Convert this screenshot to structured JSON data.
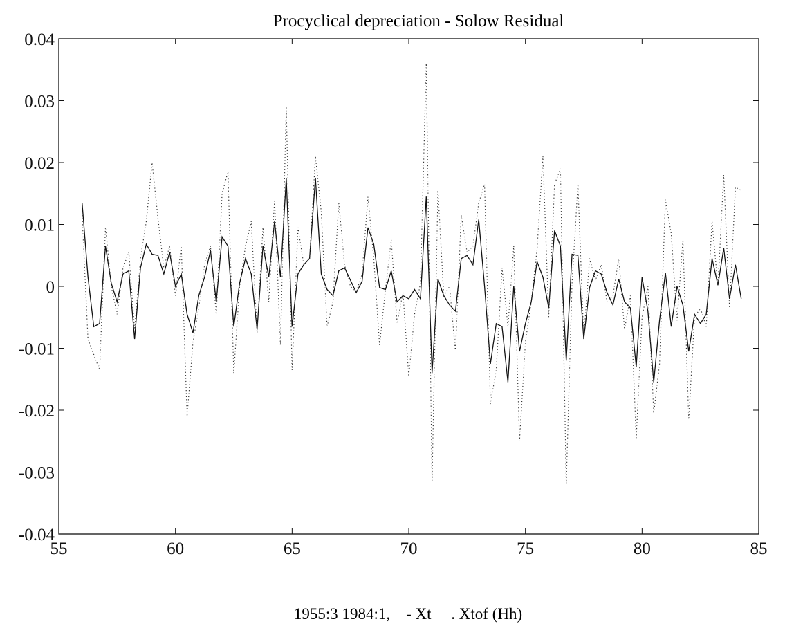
{
  "chart_data": {
    "type": "line",
    "title": "Procyclical depreciation - Solow Residual",
    "xlabel": "1955:3 1984:1,    - Xt     . Xtof (Hh)",
    "ylabel": "",
    "xlim": [
      55,
      85
    ],
    "ylim": [
      -0.04,
      0.04
    ],
    "xticks": [
      "55",
      "60",
      "65",
      "70",
      "75",
      "80",
      "85"
    ],
    "yticks": [
      "0.04",
      "0.03",
      "0.02",
      "0.01",
      "0",
      "-0.01",
      "-0.02",
      "-0.03",
      "-0.04"
    ],
    "grid": false,
    "x_start": 56.0,
    "x_step": 0.25,
    "series": [
      {
        "name": "Xt",
        "style": "solid",
        "values": [
          0.0135,
          0.0015,
          -0.0065,
          -0.006,
          0.0065,
          0.0005,
          -0.0025,
          0.002,
          0.0025,
          -0.0085,
          0.003,
          0.0068,
          0.0052,
          0.005,
          0.002,
          0.0055,
          0.0,
          0.002,
          -0.0045,
          -0.0075,
          -0.0015,
          0.0015,
          0.0058,
          -0.0025,
          0.008,
          0.0065,
          -0.0065,
          0.0005,
          0.0045,
          0.002,
          -0.007,
          0.0065,
          0.0015,
          0.0105,
          0.0015,
          0.0175,
          -0.0065,
          0.002,
          0.0035,
          0.0045,
          0.0175,
          0.002,
          -0.0005,
          -0.0015,
          0.0025,
          0.003,
          0.001,
          -0.001,
          0.0008,
          0.0095,
          0.0068,
          -0.0002,
          -0.0005,
          0.0025,
          -0.0025,
          -0.0015,
          -0.002,
          -0.0005,
          -0.002,
          0.0145,
          -0.014,
          0.0012,
          -0.0015,
          -0.003,
          -0.004,
          0.0045,
          0.005,
          0.0035,
          0.0108,
          0.0,
          -0.0125,
          -0.006,
          -0.0065,
          -0.0155,
          0.0001,
          -0.0105,
          -0.006,
          -0.0025,
          0.004,
          0.0015,
          -0.0035,
          0.009,
          0.0065,
          -0.012,
          0.0052,
          0.005,
          -0.0085,
          -0.0002,
          0.0025,
          0.002,
          -0.001,
          -0.003,
          0.0012,
          -0.0025,
          -0.0035,
          -0.013,
          0.0015,
          -0.004,
          -0.0155,
          -0.0055,
          0.0022,
          -0.0065,
          0.0,
          -0.003,
          -0.0105,
          -0.0045,
          -0.006,
          -0.0045,
          0.0045,
          0.0002,
          0.0062,
          -0.002,
          0.0035,
          -0.002
        ]
      },
      {
        "name": "Xtof (Hh)",
        "style": "dotted",
        "values": [
          0.0115,
          -0.0085,
          -0.011,
          -0.0135,
          0.0095,
          0.0,
          -0.0045,
          0.003,
          0.0055,
          -0.007,
          0.0045,
          0.0105,
          0.02,
          0.011,
          0.003,
          0.0065,
          -0.0015,
          0.0065,
          -0.021,
          -0.009,
          -0.0035,
          0.0035,
          0.0065,
          -0.0045,
          0.015,
          0.0185,
          -0.014,
          0.0,
          0.0065,
          0.0105,
          -0.0075,
          0.0095,
          -0.0025,
          0.014,
          -0.0095,
          0.029,
          -0.0135,
          0.0095,
          0.0035,
          0.0045,
          0.021,
          0.012,
          -0.0065,
          -0.0025,
          0.0135,
          0.0035,
          0.0,
          -0.001,
          0.002,
          0.0145,
          0.0045,
          -0.0095,
          -0.0005,
          0.0075,
          -0.006,
          -0.001,
          -0.0145,
          -0.0045,
          0.0005,
          0.036,
          -0.0315,
          0.0155,
          -0.0015,
          0.0,
          -0.0105,
          0.0115,
          0.0055,
          0.0065,
          0.0135,
          0.0165,
          -0.019,
          -0.0135,
          0.003,
          -0.0065,
          0.0065,
          -0.025,
          -0.009,
          -0.0025,
          0.006,
          0.021,
          -0.005,
          0.0165,
          0.019,
          -0.032,
          0.0005,
          0.0165,
          -0.0085,
          0.0045,
          0.001,
          0.0035,
          -0.0025,
          -0.0015,
          0.0045,
          -0.007,
          -0.0015,
          -0.0245,
          -0.005,
          0.0,
          -0.0205,
          -0.0125,
          0.014,
          0.0085,
          -0.0055,
          0.0075,
          -0.0215,
          -0.005,
          -0.0035,
          -0.0065,
          0.0105,
          0.0,
          0.018,
          -0.0035,
          0.016,
          0.0155
        ]
      }
    ]
  }
}
